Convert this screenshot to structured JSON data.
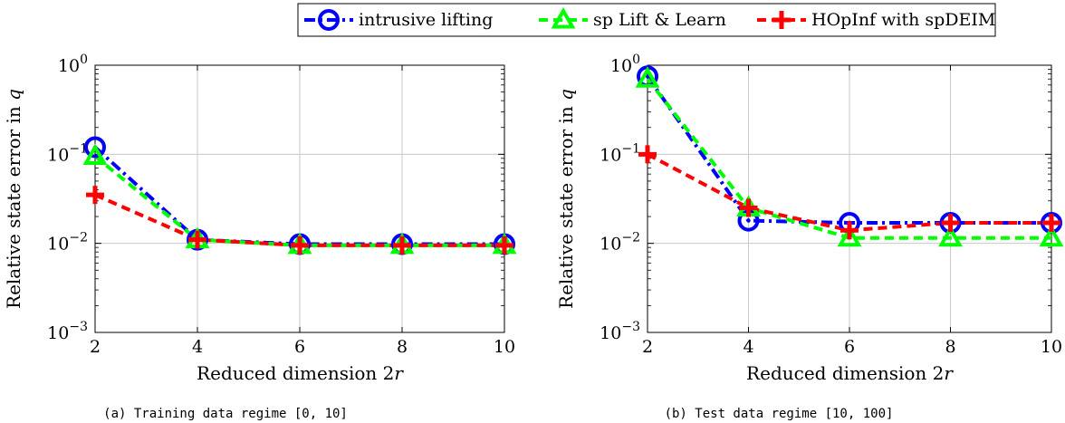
{
  "legend": {
    "entries": [
      {
        "label": "intrusive lifting",
        "color": "#0000ff",
        "marker": "circle-dot",
        "dash": "dash-dot"
      },
      {
        "label": "sp Lift & Learn",
        "color": "#00ff00",
        "marker": "triangle",
        "dash": "dash"
      },
      {
        "label": "HOpInf with spDEIM",
        "color": "#ff0000",
        "marker": "plus",
        "dash": "dash"
      }
    ]
  },
  "chart_data": [
    {
      "type": "line",
      "caption": "(a) Training data regime [0, 10]",
      "xlabel": "Reduced dimension 2",
      "xlabel_var": "r",
      "ylabel": "Relative state error in",
      "ylabel_var": "q",
      "x": [
        2,
        4,
        6,
        8,
        10
      ],
      "xticks": [
        "2",
        "4",
        "6",
        "8",
        "10"
      ],
      "yscale": "log",
      "ylim": [
        0.001,
        1
      ],
      "yticks": [
        {
          "base": "10",
          "exp": "0"
        },
        {
          "base": "10",
          "exp": "−1"
        },
        {
          "base": "10",
          "exp": "−2"
        },
        {
          "base": "10",
          "exp": "−3"
        }
      ],
      "grid": true,
      "series": [
        {
          "name": "intrusive lifting",
          "values": [
            0.12,
            0.011,
            0.0098,
            0.0098,
            0.0098
          ]
        },
        {
          "name": "sp Lift & Learn",
          "values": [
            0.095,
            0.011,
            0.0095,
            0.0095,
            0.0095
          ]
        },
        {
          "name": "HOpInf with spDEIM",
          "values": [
            0.035,
            0.011,
            0.0095,
            0.0095,
            0.0095
          ]
        }
      ]
    },
    {
      "type": "line",
      "caption": "(b) Test data regime [10, 100]",
      "xlabel": "Reduced dimension 2",
      "xlabel_var": "r",
      "ylabel": "Relative state error in",
      "ylabel_var": "q",
      "x": [
        2,
        4,
        6,
        8,
        10
      ],
      "xticks": [
        "2",
        "4",
        "6",
        "8",
        "10"
      ],
      "yscale": "log",
      "ylim": [
        0.001,
        1
      ],
      "yticks": [
        {
          "base": "10",
          "exp": "0"
        },
        {
          "base": "10",
          "exp": "−1"
        },
        {
          "base": "10",
          "exp": "−2"
        },
        {
          "base": "10",
          "exp": "−3"
        }
      ],
      "grid": true,
      "series": [
        {
          "name": "intrusive lifting",
          "values": [
            0.75,
            0.018,
            0.017,
            0.017,
            0.017
          ]
        },
        {
          "name": "sp Lift & Learn",
          "values": [
            0.7,
            0.025,
            0.0115,
            0.0115,
            0.0115
          ]
        },
        {
          "name": "HOpInf with spDEIM",
          "values": [
            0.1,
            0.025,
            0.014,
            0.017,
            0.017
          ]
        }
      ]
    }
  ]
}
